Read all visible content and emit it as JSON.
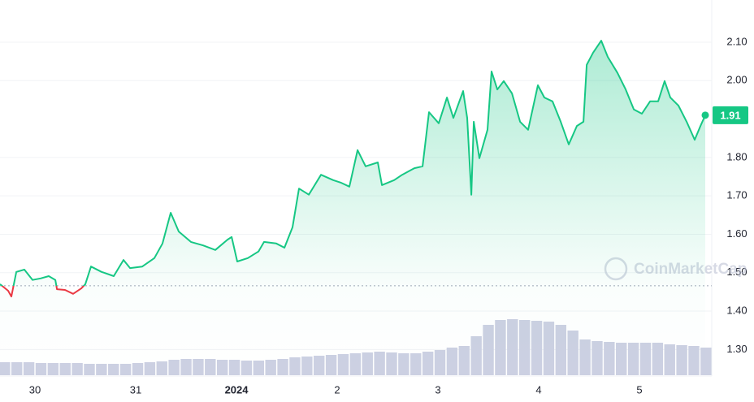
{
  "chart_data": {
    "type": "line",
    "x": [
      -0.347,
      -0.266,
      -0.234,
      -0.185,
      -0.105,
      -0.024,
      0.056,
      0.137,
      0.202,
      0.218,
      0.298,
      0.379,
      0.46,
      0.5,
      0.556,
      0.661,
      0.782,
      0.879,
      0.944,
      1.065,
      1.185,
      1.266,
      1.347,
      1.427,
      1.548,
      1.669,
      1.79,
      1.911,
      1.952,
      2.008,
      2.113,
      2.218,
      2.274,
      2.395,
      2.476,
      2.556,
      2.621,
      2.718,
      2.839,
      2.96,
      3.04,
      3.121,
      3.202,
      3.282,
      3.403,
      3.444,
      3.565,
      3.645,
      3.766,
      3.847,
      3.911,
      4.008,
      4.089,
      4.153,
      4.25,
      4.29,
      4.331,
      4.355,
      4.411,
      4.492,
      4.532,
      4.589,
      4.653,
      4.734,
      4.815,
      4.895,
      4.992,
      5.056,
      5.137,
      5.218,
      5.298,
      5.379,
      5.444,
      5.476,
      5.54,
      5.621,
      5.685,
      5.782,
      5.863,
      5.944,
      6.024,
      6.105,
      6.185,
      6.25,
      6.306,
      6.387,
      6.468,
      6.548,
      6.605,
      6.653
    ],
    "values": [
      1.47,
      1.453,
      1.438,
      1.502,
      1.508,
      1.481,
      1.485,
      1.491,
      1.481,
      1.457,
      1.455,
      1.445,
      1.459,
      1.47,
      1.516,
      1.502,
      1.491,
      1.533,
      1.512,
      1.516,
      1.538,
      1.576,
      1.656,
      1.607,
      1.58,
      1.571,
      1.559,
      1.586,
      1.593,
      1.529,
      1.538,
      1.555,
      1.58,
      1.576,
      1.565,
      1.618,
      1.719,
      1.703,
      1.755,
      1.741,
      1.734,
      1.724,
      1.819,
      1.777,
      1.787,
      1.728,
      1.741,
      1.755,
      1.772,
      1.777,
      1.918,
      1.889,
      1.956,
      1.903,
      1.973,
      1.903,
      1.703,
      1.893,
      1.798,
      1.872,
      2.024,
      1.977,
      1.999,
      1.967,
      1.893,
      1.872,
      1.988,
      1.956,
      1.946,
      1.893,
      1.834,
      1.882,
      1.893,
      2.041,
      2.073,
      2.104,
      2.062,
      2.02,
      1.977,
      1.925,
      1.914,
      1.946,
      1.946,
      1.999,
      1.956,
      1.935,
      1.893,
      1.846,
      1.882,
      1.91
    ],
    "color": "#16c784",
    "down_color": "#ea3943",
    "baseline": 1.466,
    "current_price": 1.91,
    "watermark": "CoinMarketCap",
    "grid": true,
    "xlim": [
      -0.347,
      6.669
    ],
    "xticks": [
      {
        "value": 0,
        "label": "30"
      },
      {
        "value": 1,
        "label": "31"
      },
      {
        "value": 2,
        "label": "2024"
      },
      {
        "value": 3,
        "label": "2"
      },
      {
        "value": 4,
        "label": "3"
      },
      {
        "value": 5,
        "label": "4"
      },
      {
        "value": 6,
        "label": "5"
      }
    ],
    "ylim": [
      1.233,
      2.21
    ],
    "yticks": [
      {
        "value": 1.3,
        "label": "1.30"
      },
      {
        "value": 1.4,
        "label": "1.40"
      },
      {
        "value": 1.5,
        "label": "1.50"
      },
      {
        "value": 1.6,
        "label": "1.60"
      },
      {
        "value": 1.7,
        "label": "1.70"
      },
      {
        "value": 1.8,
        "label": "1.80"
      },
      {
        "value": 2.0,
        "label": "2.00"
      },
      {
        "value": 2.1,
        "label": "2.10"
      }
    ],
    "volume": {
      "color": "#ccd0e2",
      "ylim": [
        0,
        100
      ],
      "x": [
        -0.3,
        -0.18,
        -0.06,
        0.06,
        0.18,
        0.3,
        0.42,
        0.54,
        0.66,
        0.78,
        0.9,
        1.02,
        1.14,
        1.26,
        1.38,
        1.5,
        1.62,
        1.74,
        1.86,
        1.98,
        2.1,
        2.22,
        2.34,
        2.46,
        2.58,
        2.7,
        2.82,
        2.94,
        3.06,
        3.18,
        3.3,
        3.42,
        3.54,
        3.66,
        3.78,
        3.9,
        4.02,
        4.14,
        4.26,
        4.38,
        4.5,
        4.62,
        4.74,
        4.86,
        4.98,
        5.1,
        5.22,
        5.34,
        5.46,
        5.58,
        5.7,
        5.82,
        5.94,
        6.06,
        6.18,
        6.3,
        6.42,
        6.54,
        6.66
      ],
      "values": [
        16,
        16,
        16,
        15,
        15,
        15,
        15,
        14,
        14,
        14,
        14,
        15,
        16,
        17,
        19,
        20,
        20,
        20,
        19,
        19,
        18,
        18,
        19,
        20,
        22,
        23,
        24,
        25,
        26,
        27,
        28,
        29,
        28,
        27,
        27,
        29,
        31,
        34,
        36,
        48,
        62,
        68,
        69,
        68,
        67,
        66,
        62,
        55,
        44,
        42,
        41,
        40,
        40,
        40,
        40,
        38,
        37,
        36,
        34
      ]
    }
  }
}
